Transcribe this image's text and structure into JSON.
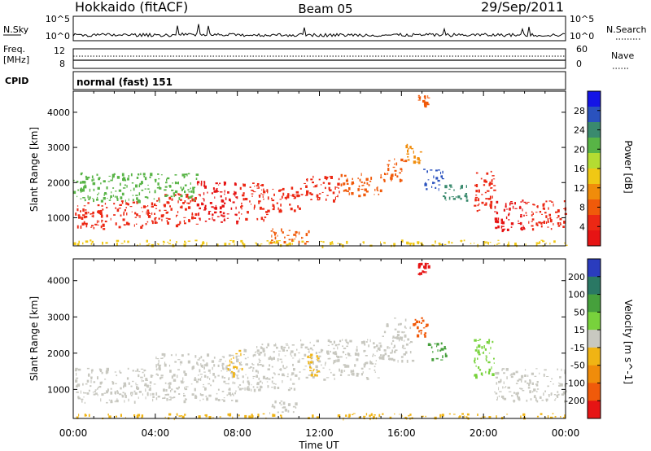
{
  "header": {
    "station": "Hokkaido (fitACF)",
    "beam": "Beam 05",
    "date": "29/Sep/2011"
  },
  "top_panels": {
    "nsky": {
      "label": "N.Sky",
      "left_ticks": [
        "10^5",
        "10^0"
      ],
      "right_ticks": [
        "10^5",
        "10^0"
      ],
      "right_label": "N.Search"
    },
    "freq": {
      "label_line1": "Freq.",
      "label_line2": "[MHz]",
      "left_ticks": [
        "12",
        "8"
      ],
      "right_ticks": [
        "60",
        "0"
      ],
      "right_label": "Nave"
    },
    "cpid": {
      "label": "CPID",
      "text": "normal (fast) 151"
    }
  },
  "chart_data": [
    {
      "type": "heatmap",
      "name": "power",
      "xlabel": "Time UT",
      "ylabel": "Slant Range [km]",
      "xlim": [
        0,
        24
      ],
      "ylim": [
        200,
        4600
      ],
      "yticks": [
        1000,
        2000,
        3000,
        4000
      ],
      "colorbar": {
        "label": "Power [dB]",
        "ticks": [
          "4",
          "8",
          "12",
          "16",
          "20",
          "24",
          "28"
        ],
        "colors": [
          "#1414e6",
          "#2a52be",
          "#3a8a6e",
          "#58b446",
          "#b4dc32",
          "#f0c814",
          "#f08c0a",
          "#f05a0a",
          "#ec2814",
          "#e61414"
        ]
      },
      "bands": [
        {
          "t0": 0,
          "t1": 2,
          "r0": 700,
          "r1": 1450,
          "color": "#ec2814"
        },
        {
          "t0": 2,
          "t1": 4,
          "r0": 750,
          "r1": 1500,
          "color": "#ec2814"
        },
        {
          "t0": 4,
          "t1": 6,
          "r0": 800,
          "r1": 1700,
          "color": "#ec2814"
        },
        {
          "t0": 6,
          "t1": 8,
          "r0": 850,
          "r1": 2100,
          "color": "#e61414"
        },
        {
          "t0": 8,
          "t1": 9.5,
          "r0": 950,
          "r1": 2000,
          "color": "#ec2814"
        },
        {
          "t0": 9.5,
          "t1": 11,
          "r0": 1150,
          "r1": 1900,
          "color": "#ec2814"
        },
        {
          "t0": 11,
          "t1": 13,
          "r0": 1500,
          "r1": 2200,
          "color": "#ec2814"
        },
        {
          "t0": 13,
          "t1": 15,
          "r0": 1650,
          "r1": 2300,
          "color": "#f05a0a"
        },
        {
          "t0": 15,
          "t1": 16.2,
          "r0": 2000,
          "r1": 2700,
          "color": "#f05a0a"
        },
        {
          "t0": 16.2,
          "t1": 17,
          "r0": 2600,
          "r1": 3100,
          "color": "#f08c0a"
        },
        {
          "t0": 17,
          "t1": 18,
          "r0": 1800,
          "r1": 2400,
          "color": "#2a52be"
        },
        {
          "t0": 18,
          "t1": 19.2,
          "r0": 1500,
          "r1": 2000,
          "color": "#3a8a6e"
        },
        {
          "t0": 19.5,
          "t1": 20.5,
          "r0": 1200,
          "r1": 2400,
          "color": "#ec2814"
        },
        {
          "t0": 20.5,
          "t1": 22,
          "r0": 650,
          "r1": 1600,
          "color": "#e61414"
        },
        {
          "t0": 22,
          "t1": 24,
          "r0": 700,
          "r1": 1500,
          "color": "#ec2814"
        },
        {
          "t0": 0,
          "t1": 6,
          "r0": 1500,
          "r1": 2300,
          "color": "#58b446"
        },
        {
          "t0": 9.5,
          "t1": 11.5,
          "r0": 250,
          "r1": 700,
          "color": "#f05a0a"
        },
        {
          "t0": 16.8,
          "t1": 17.3,
          "r0": 4200,
          "r1": 4500,
          "color": "#f05a0a"
        },
        {
          "t0": 0,
          "t1": 24,
          "r0": 220,
          "r1": 380,
          "color": "#f0c814"
        }
      ]
    },
    {
      "type": "heatmap",
      "name": "velocity",
      "xlabel": "Time UT",
      "ylabel": "Slant Range [km]",
      "xlim": [
        0,
        24
      ],
      "ylim": [
        200,
        4600
      ],
      "yticks": [
        1000,
        2000,
        3000,
        4000
      ],
      "xticks": [
        "00:00",
        "04:00",
        "08:00",
        "12:00",
        "16:00",
        "20:00",
        "00:00"
      ],
      "colorbar": {
        "label": "Velocity [m s^-1]",
        "ticks": [
          "200",
          "100",
          "50",
          "15",
          "-15",
          "-50",
          "-100",
          "-200"
        ],
        "colors": [
          "#2a3cbe",
          "#2a7864",
          "#46a03c",
          "#78d23c",
          "#c8c8c0",
          "#f0b414",
          "#f08c0a",
          "#f05a0a",
          "#e61414"
        ]
      },
      "bands": [
        {
          "t0": 0,
          "t1": 4,
          "r0": 650,
          "r1": 1600,
          "color": "#c8c8c0"
        },
        {
          "t0": 4,
          "t1": 8,
          "r0": 700,
          "r1": 2000,
          "color": "#c8c8c0"
        },
        {
          "t0": 8,
          "t1": 11,
          "r0": 1000,
          "r1": 2300,
          "color": "#c8c8c0"
        },
        {
          "t0": 11,
          "t1": 15,
          "r0": 1300,
          "r1": 2400,
          "color": "#c8c8c0"
        },
        {
          "t0": 15,
          "t1": 16.5,
          "r0": 1800,
          "r1": 3000,
          "color": "#c8c8c0"
        },
        {
          "t0": 16.5,
          "t1": 17.2,
          "r0": 2500,
          "r1": 3000,
          "color": "#f05a0a"
        },
        {
          "t0": 17.2,
          "t1": 18.2,
          "r0": 1800,
          "r1": 2300,
          "color": "#46a03c"
        },
        {
          "t0": 19.5,
          "t1": 20.5,
          "r0": 1300,
          "r1": 2400,
          "color": "#78d23c"
        },
        {
          "t0": 20.5,
          "t1": 24,
          "r0": 700,
          "r1": 1600,
          "color": "#c8c8c0"
        },
        {
          "t0": 7.5,
          "t1": 8.2,
          "r0": 1400,
          "r1": 2100,
          "color": "#f0b414"
        },
        {
          "t0": 11.4,
          "t1": 11.9,
          "r0": 1400,
          "r1": 2000,
          "color": "#f0b414"
        },
        {
          "t0": 9.5,
          "t1": 11,
          "r0": 350,
          "r1": 700,
          "color": "#c8c8c0"
        },
        {
          "t0": 16.8,
          "t1": 17.3,
          "r0": 4200,
          "r1": 4500,
          "color": "#e61414"
        },
        {
          "t0": 0,
          "t1": 24,
          "r0": 220,
          "r1": 350,
          "color": "#f0b414"
        }
      ]
    }
  ],
  "colors": {
    "axis": "#000000",
    "background": "#ffffff"
  }
}
